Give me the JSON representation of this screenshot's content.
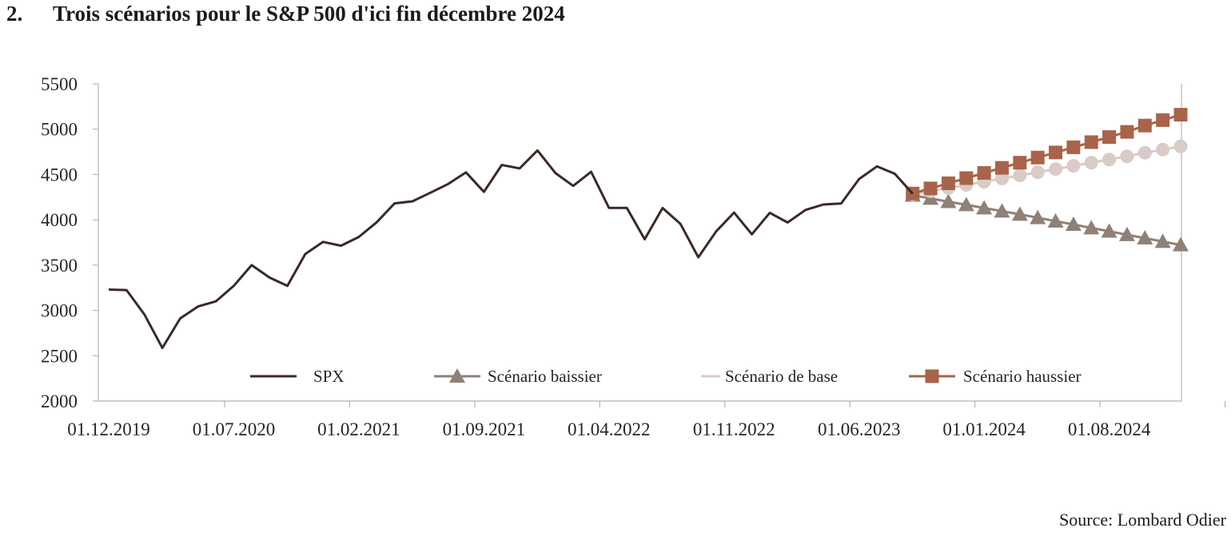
{
  "heading": {
    "number": "2.",
    "title": "Trois scénarios pour le S&P 500 d'ici fin décembre 2024"
  },
  "source": "Source: Lombard Odier",
  "colors": {
    "spx": "#3a2a26",
    "bear": "#8f8178",
    "base": "#d9cbc6",
    "bull": "#a8644a",
    "axis": "#b9b2ae"
  },
  "chart_data": {
    "type": "line",
    "ylim": [
      2000,
      5500
    ],
    "y_ticks": [
      2000,
      2500,
      3000,
      3500,
      4000,
      4500,
      5000,
      5500
    ],
    "x_ticks": [
      "01.12.2019",
      "01.07.2020",
      "01.02.2021",
      "01.09.2021",
      "01.04.2022",
      "01.11.2022",
      "01.06.2023",
      "01.01.2024",
      "01.08.2024"
    ],
    "x_range": [
      "2019-12",
      "2024-12"
    ],
    "legend": [
      "SPX",
      "Scénario baissier",
      "Scénario de base",
      "Scénario haussier"
    ],
    "series": [
      {
        "name": "SPX",
        "x": [
          "2019-12",
          "2020-01",
          "2020-02",
          "2020-03",
          "2020-04",
          "2020-05",
          "2020-06",
          "2020-07",
          "2020-08",
          "2020-09",
          "2020-10",
          "2020-11",
          "2020-12",
          "2021-01",
          "2021-02",
          "2021-03",
          "2021-04",
          "2021-05",
          "2021-06",
          "2021-07",
          "2021-08",
          "2021-09",
          "2021-10",
          "2021-11",
          "2021-12",
          "2022-01",
          "2022-02",
          "2022-03",
          "2022-04",
          "2022-05",
          "2022-06",
          "2022-07",
          "2022-08",
          "2022-09",
          "2022-10",
          "2022-11",
          "2022-12",
          "2023-01",
          "2023-02",
          "2023-03",
          "2023-04",
          "2023-05",
          "2023-06",
          "2023-07",
          "2023-08",
          "2023-09"
        ],
        "values": [
          3230,
          3225,
          2955,
          2585,
          2912,
          3044,
          3100,
          3271,
          3500,
          3363,
          3270,
          3622,
          3756,
          3714,
          3811,
          3973,
          4181,
          4204,
          4298,
          4395,
          4523,
          4308,
          4605,
          4567,
          4766,
          4516,
          4374,
          4530,
          4132,
          4132,
          3785,
          4130,
          3955,
          3586,
          3872,
          4080,
          3840,
          4077,
          3970,
          4109,
          4169,
          4180,
          4450,
          4589,
          4508,
          4288
        ]
      },
      {
        "name": "Scénario baissier",
        "x": [
          "2023-09",
          "2023-10",
          "2023-11",
          "2023-12",
          "2024-01",
          "2024-02",
          "2024-03",
          "2024-04",
          "2024-05",
          "2024-06",
          "2024-07",
          "2024-08",
          "2024-09",
          "2024-10",
          "2024-11",
          "2024-12"
        ],
        "values": [
          4270,
          4236,
          4200,
          4165,
          4130,
          4095,
          4060,
          4022,
          3985,
          3948,
          3910,
          3873,
          3835,
          3798,
          3760,
          3722
        ]
      },
      {
        "name": "Scénario de base",
        "x": [
          "2023-09",
          "2023-10",
          "2023-11",
          "2023-12",
          "2024-01",
          "2024-02",
          "2024-03",
          "2024-04",
          "2024-05",
          "2024-06",
          "2024-07",
          "2024-08",
          "2024-09",
          "2024-10",
          "2024-11",
          "2024-12"
        ],
        "values": [
          4280,
          4315,
          4350,
          4385,
          4420,
          4455,
          4490,
          4525,
          4560,
          4595,
          4630,
          4665,
          4700,
          4740,
          4775,
          4810
        ]
      },
      {
        "name": "Scénario haussier",
        "x": [
          "2023-09",
          "2023-10",
          "2023-11",
          "2023-12",
          "2024-01",
          "2024-02",
          "2024-03",
          "2024-04",
          "2024-05",
          "2024-06",
          "2024-07",
          "2024-08",
          "2024-09",
          "2024-10",
          "2024-11",
          "2024-12"
        ],
        "values": [
          4290,
          4346,
          4403,
          4460,
          4517,
          4573,
          4630,
          4687,
          4743,
          4800,
          4857,
          4913,
          4970,
          5040,
          5100,
          5160
        ]
      }
    ]
  }
}
